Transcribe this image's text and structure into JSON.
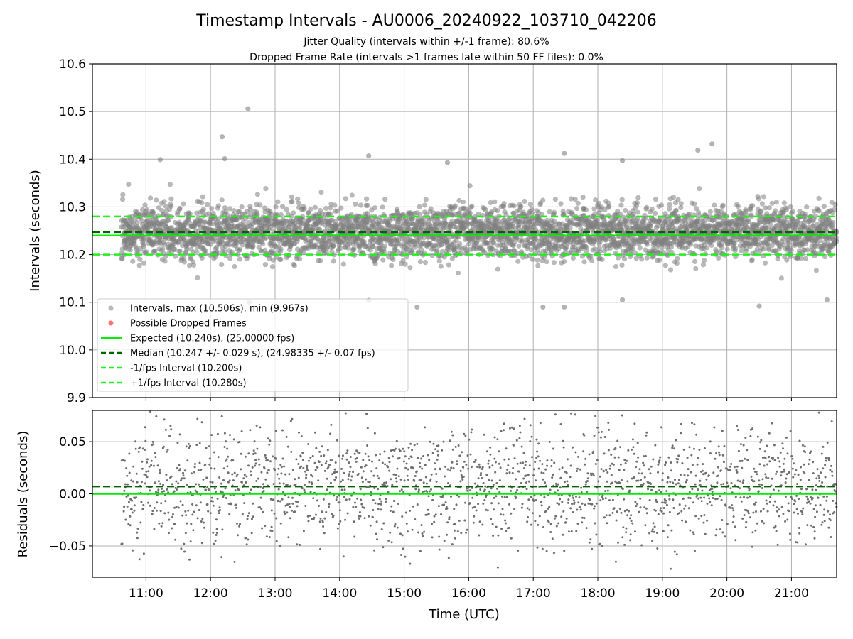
{
  "title": "Timestamp Intervals - AU0006_20240922_103710_042206",
  "subtitle_lines": [
    "Jitter Quality (intervals within +/-1 frame): 80.6%",
    "Dropped Frame Rate (intervals >1 frames late within 50 FF files): 0.0%"
  ],
  "colors": {
    "points": "#808080",
    "dropped": "#ff0000",
    "expected": "#00ee00",
    "median": "#006400",
    "fps_interval": "#22ee22",
    "grid": "#b0b0b0"
  },
  "chart_data": [
    {
      "type": "scatter",
      "name": "intervals",
      "ylabel": "Intervals (seconds)",
      "ylim": [
        9.9,
        10.6
      ],
      "yticks": [
        9.9,
        10.0,
        10.1,
        10.2,
        10.3,
        10.4,
        10.5,
        10.6
      ],
      "ytick_labels": [
        "9.9",
        "10.0",
        "10.1",
        "10.2",
        "10.3",
        "10.4",
        "10.5",
        "10.6"
      ],
      "xlim_hours": [
        10.17,
        21.7
      ],
      "data_start_hour": 10.62,
      "data_end_hour": 21.7,
      "grid": true,
      "legend_position": "lower-left",
      "lines": {
        "expected": 10.24,
        "median": 10.247,
        "minus_interval": 10.2,
        "plus_interval": 10.28
      },
      "stats": {
        "max": 10.506,
        "min": 9.967,
        "median_std": 0.029,
        "count_estimate": 3900,
        "outliers": [
          {
            "hour": 12.58,
            "value": 10.506
          },
          {
            "hour": 12.18,
            "value": 10.447
          },
          {
            "hour": 19.77,
            "value": 10.432
          },
          {
            "hour": 19.55,
            "value": 10.419
          },
          {
            "hour": 17.48,
            "value": 10.412
          },
          {
            "hour": 14.45,
            "value": 10.407
          },
          {
            "hour": 12.22,
            "value": 10.401
          },
          {
            "hour": 11.22,
            "value": 10.399
          },
          {
            "hour": 15.67,
            "value": 10.393
          },
          {
            "hour": 18.38,
            "value": 10.397
          },
          {
            "hour": 12.6,
            "value": 10.1
          },
          {
            "hour": 14.45,
            "value": 10.104
          },
          {
            "hour": 15.2,
            "value": 10.09
          },
          {
            "hour": 17.15,
            "value": 10.09
          },
          {
            "hour": 17.48,
            "value": 10.09
          },
          {
            "hour": 20.5,
            "value": 10.092
          },
          {
            "hour": 21.55,
            "value": 10.105
          },
          {
            "hour": 18.38,
            "value": 10.105
          }
        ]
      },
      "legend": [
        {
          "type": "dot",
          "color_key": "points",
          "label": "Intervals, max (10.506s), min (9.967s)"
        },
        {
          "type": "dot",
          "color_key": "dropped",
          "label": "Possible Dropped Frames"
        },
        {
          "type": "solid",
          "color_key": "expected",
          "label": "Expected (10.240s), (25.00000 fps)"
        },
        {
          "type": "dashed",
          "color_key": "median",
          "label": "Median (10.247 +/- 0.029 s), (24.98335 +/- 0.07 fps)"
        },
        {
          "type": "dashed",
          "color_key": "fps_interval",
          "label": "-1/fps Interval (10.200s)"
        },
        {
          "type": "dashed",
          "color_key": "fps_interval",
          "label": "+1/fps Interval (10.280s)"
        }
      ]
    },
    {
      "type": "scatter",
      "name": "residuals",
      "ylabel": "Residuals (seconds)",
      "xlabel": "Time (UTC)",
      "ylim": [
        -0.08,
        0.08
      ],
      "yticks": [
        -0.05,
        0.0,
        0.05
      ],
      "ytick_labels": [
        "−0.05",
        "0.00",
        "0.05"
      ],
      "xticks_hours": [
        11,
        12,
        13,
        14,
        15,
        16,
        17,
        18,
        19,
        20,
        21
      ],
      "xtick_labels": [
        "11:00",
        "12:00",
        "13:00",
        "14:00",
        "15:00",
        "16:00",
        "17:00",
        "18:00",
        "19:00",
        "20:00",
        "21:00"
      ],
      "grid": true,
      "lines": {
        "zero": 0.0,
        "median_offset": 0.007
      }
    }
  ]
}
